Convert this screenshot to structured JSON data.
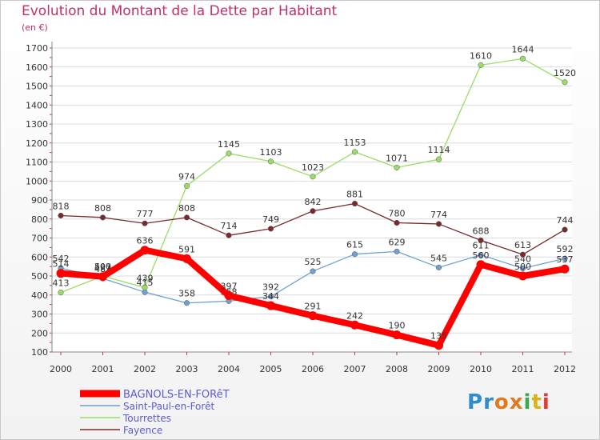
{
  "title": "Evolution du Montant de la Dette par Habitant",
  "subtitle": "(en €)",
  "logo_text": "Proxiti",
  "chart_data": {
    "type": "line",
    "title": "Evolution du Montant de la Dette par Habitant",
    "subtitle": "(en €)",
    "x": [
      "2000",
      "2001",
      "2002",
      "2003",
      "2004",
      "2005",
      "2006",
      "2007",
      "2008",
      "2009",
      "2010",
      "2011",
      "2012"
    ],
    "ylim": [
      100,
      1700
    ],
    "yticks": [
      100,
      200,
      300,
      400,
      500,
      600,
      700,
      800,
      900,
      1000,
      1100,
      1200,
      1300,
      1400,
      1500,
      1600,
      1700
    ],
    "grid": true,
    "legend_position": "bottom-left",
    "series": [
      {
        "name": "BAGNOLS-EN-FORêT",
        "color": "#ff0000",
        "values": [
          514,
          497,
          636,
          591,
          397,
          344,
          291,
          242,
          190,
          135,
          560,
          500,
          537
        ]
      },
      {
        "name": "Saint-Paul-en-Forêt",
        "color": "#6fa0d0",
        "values": [
          542,
          487,
          415,
          358,
          368,
          392,
          525,
          615,
          629,
          545,
          611,
          540,
          592
        ]
      },
      {
        "name": "Tourrettes",
        "color": "#99dd66",
        "values": [
          413,
          500,
          439,
          974,
          1145,
          1103,
          1023,
          1153,
          1071,
          1114,
          1610,
          1644,
          1520
        ]
      },
      {
        "name": "Fayence",
        "color": "#7a2a2a",
        "values": [
          818,
          808,
          777,
          808,
          714,
          749,
          842,
          881,
          780,
          774,
          688,
          613,
          744
        ]
      }
    ]
  }
}
